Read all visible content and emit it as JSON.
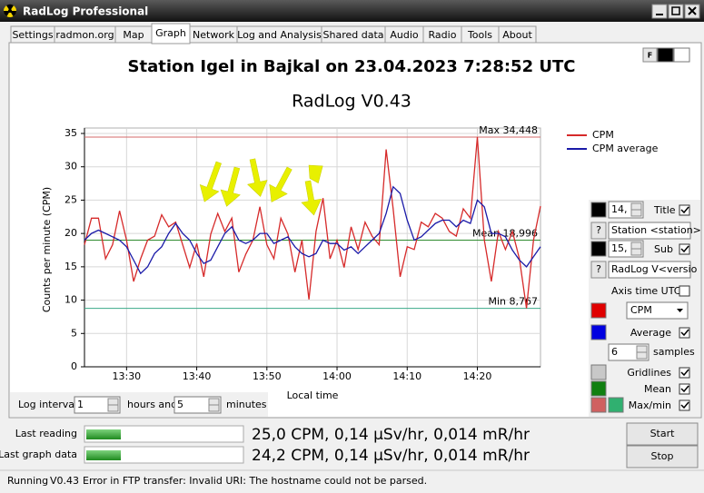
{
  "window": {
    "title": "RadLog Professional"
  },
  "tabs": [
    "Settings",
    "radmon.org",
    "Map",
    "Graph",
    "Network",
    "Log and Analysis",
    "Shared data",
    "Audio",
    "Radio",
    "Tools",
    "About"
  ],
  "chart_data": {
    "type": "line",
    "title": "Station Igel in Bajkal on 23.04.2023 7:28:52 UTC",
    "subtitle": "RadLog V0.43",
    "x_label": "Local time",
    "y_label": "Counts per minute (CPM)",
    "x": [
      804,
      805,
      806,
      807,
      808,
      809,
      810,
      811,
      812,
      813,
      814,
      815,
      816,
      817,
      818,
      819,
      820,
      821,
      822,
      823,
      824,
      825,
      826,
      827,
      828,
      829,
      830,
      831,
      832,
      833,
      834,
      835,
      836,
      837,
      838,
      839,
      840,
      841,
      842,
      843,
      844,
      845,
      846,
      847,
      848,
      849,
      850,
      851,
      852,
      853,
      854,
      855,
      856,
      857,
      858,
      859,
      860,
      861,
      862,
      863,
      864,
      865,
      866,
      867,
      868,
      869
    ],
    "series": [
      {
        "name": "CPM",
        "color": "#d62a2a",
        "values": [
          18.3,
          22.3,
          22.3,
          16.2,
          18.3,
          23.4,
          19,
          12.8,
          16.2,
          19,
          19.6,
          22.8,
          21,
          21.7,
          18.3,
          14.9,
          18.5,
          13.5,
          19.9,
          23,
          20.3,
          22.3,
          14.2,
          16.9,
          19,
          24,
          18.3,
          16.2,
          22.3,
          19.9,
          14.2,
          19,
          10.1,
          20.3,
          25.3,
          16.2,
          19,
          14.9,
          21,
          17.6,
          21.7,
          19.6,
          18.3,
          32.6,
          23.7,
          13.5,
          18,
          17.6,
          21.7,
          21,
          23,
          22.3,
          20.3,
          19.6,
          23.7,
          22.3,
          34.448,
          19,
          12.8,
          20.3,
          17.6,
          20.3,
          16.2,
          8.767,
          19,
          24.1
        ]
      },
      {
        "name": "CPM average",
        "color": "#1a1aa8",
        "values": [
          19,
          20,
          20.5,
          20,
          19.5,
          19,
          18,
          16,
          14,
          15,
          17,
          18,
          20,
          21.5,
          20,
          19,
          17,
          15.5,
          16,
          18,
          20,
          21,
          19,
          18.5,
          19,
          20,
          20,
          18.5,
          19,
          19.5,
          18,
          17,
          16.5,
          17,
          19,
          18.5,
          18.5,
          17.5,
          18,
          17,
          18,
          19,
          20,
          23,
          27,
          26,
          22,
          19,
          19.5,
          20.5,
          21.5,
          22,
          22,
          21,
          22,
          21.5,
          25,
          24,
          20,
          20,
          19.5,
          17.5,
          16,
          15,
          16.5,
          18
        ]
      }
    ],
    "reference_lines": [
      {
        "value": 34.448,
        "label": "Max 34,448",
        "color": "#d46a6a"
      },
      {
        "value": 18.996,
        "label": "Mean 18,996",
        "color": "#2e8b2e"
      },
      {
        "value": 8.767,
        "label": "Min 8,767",
        "color": "#3aaa88"
      }
    ],
    "xlim": [
      804,
      869
    ],
    "xticks": [
      {
        "value": 810,
        "label": "13:30"
      },
      {
        "value": 820,
        "label": "13:40"
      },
      {
        "value": 830,
        "label": "13:50"
      },
      {
        "value": 840,
        "label": "14:00"
      },
      {
        "value": 850,
        "label": "14:10"
      },
      {
        "value": 860,
        "label": "14:20"
      }
    ],
    "ylim": [
      0,
      35
    ],
    "yticks": [
      0,
      5,
      10,
      15,
      20,
      25,
      30,
      35
    ],
    "grid": true,
    "legend": "top-right"
  },
  "graph_controls": {
    "font_button": "F",
    "title_size": "14,",
    "title_label": "Title",
    "title_help": "?",
    "title_text": "Station <station> i",
    "sub_size": "15,",
    "sub_label": "Sub",
    "sub_help": "?",
    "sub_text": "RadLog V<versio",
    "axis_time_utc": "Axis time UTC",
    "series_select": "CPM",
    "average_label": "Average",
    "samples_value": "6",
    "samples_label": "samples",
    "gridlines_label": "Gridlines",
    "mean_label": "Mean",
    "maxmin_label": "Max/min"
  },
  "log_interval": {
    "label": "Log interval",
    "hours": "1",
    "hours_label": "hours and",
    "minutes": "5",
    "minutes_label": "minutes"
  },
  "readings": {
    "last_reading_label": "Last reading",
    "last_reading": "25,0 CPM, 0,14 µSv/hr, 0,014 mR/hr",
    "last_graph_label": "Last graph data",
    "last_graph": "24,2 CPM, 0,14 µSv/hr, 0,014 mR/hr"
  },
  "buttons": {
    "start": "Start",
    "stop": "Stop"
  },
  "status": {
    "state": "Running",
    "version": "V0.43",
    "message": "Error in FTP transfer: Invalid URI: The hostname could not be parsed."
  }
}
